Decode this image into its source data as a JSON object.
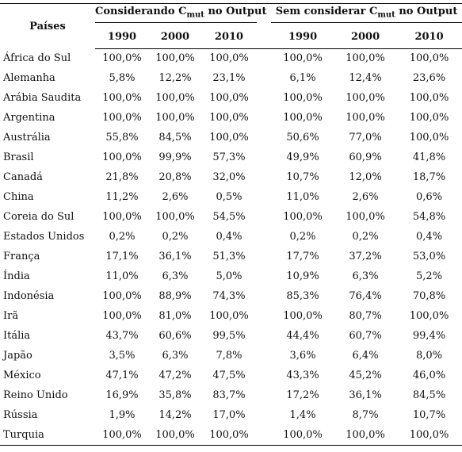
{
  "header": {
    "country_label": "Países",
    "groups": [
      {
        "prefix": "Considerando C",
        "sub": "mut",
        "suffix": "no Output"
      },
      {
        "prefix": "Sem considerar C",
        "sub": "mut",
        "suffix": "no Output"
      }
    ],
    "years": [
      "1990",
      "2000",
      "2010"
    ]
  },
  "table": {
    "rows": [
      [
        "África do Sul",
        "100,0%",
        "100,0%",
        "100,0%",
        "100,0%",
        "100,0%",
        "100,0%"
      ],
      [
        "Alemanha",
        "5,8%",
        "12,2%",
        "23,1%",
        "6,1%",
        "12,4%",
        "23,6%"
      ],
      [
        "Arábia Saudita",
        "100,0%",
        "100,0%",
        "100,0%",
        "100,0%",
        "100,0%",
        "100,0%"
      ],
      [
        "Argentina",
        "100,0%",
        "100,0%",
        "100,0%",
        "100,0%",
        "100,0%",
        "100,0%"
      ],
      [
        "Austrália",
        "55,8%",
        "84,5%",
        "100,0%",
        "50,6%",
        "77,0%",
        "100,0%"
      ],
      [
        "Brasil",
        "100,0%",
        "99,9%",
        "57,3%",
        "49,9%",
        "60,9%",
        "41,8%"
      ],
      [
        "Canadá",
        "21,8%",
        "20,8%",
        "32,0%",
        "10,7%",
        "12,0%",
        "18,7%"
      ],
      [
        "China",
        "11,2%",
        "2,6%",
        "0,5%",
        "11,0%",
        "2,6%",
        "0,6%"
      ],
      [
        "Coreia do Sul",
        "100,0%",
        "100,0%",
        "54,5%",
        "100,0%",
        "100,0%",
        "54,8%"
      ],
      [
        "Estados Unidos",
        "0,2%",
        "0,2%",
        "0,4%",
        "0,2%",
        "0,2%",
        "0,4%"
      ],
      [
        "França",
        "17,1%",
        "36,1%",
        "51,3%",
        "17,7%",
        "37,2%",
        "53,0%"
      ],
      [
        "Índia",
        "11,0%",
        "6,3%",
        "5,0%",
        "10,9%",
        "6,3%",
        "5,2%"
      ],
      [
        "Indonésia",
        "100,0%",
        "88,9%",
        "74,3%",
        "85,3%",
        "76,4%",
        "70,8%"
      ],
      [
        "Irã",
        "100,0%",
        "81,0%",
        "100,0%",
        "100,0%",
        "80,7%",
        "100,0%"
      ],
      [
        "Itália",
        "43,7%",
        "60,6%",
        "99,5%",
        "44,4%",
        "60,7%",
        "99,4%"
      ],
      [
        "Japão",
        "3,5%",
        "6,3%",
        "7,8%",
        "3,6%",
        "6,4%",
        "8,0%"
      ],
      [
        "México",
        "47,1%",
        "47,2%",
        "47,5%",
        "43,3%",
        "45,2%",
        "46,0%"
      ],
      [
        "Reino Unido",
        "16,9%",
        "35,8%",
        "83,7%",
        "17,2%",
        "36,1%",
        "84,5%"
      ],
      [
        "Rússia",
        "1,9%",
        "14,2%",
        "17,0%",
        "1,4%",
        "8,7%",
        "10,7%"
      ],
      [
        "Turquia",
        "100,0%",
        "100,0%",
        "100,0%",
        "100,0%",
        "100,0%",
        "100,0%"
      ]
    ]
  }
}
